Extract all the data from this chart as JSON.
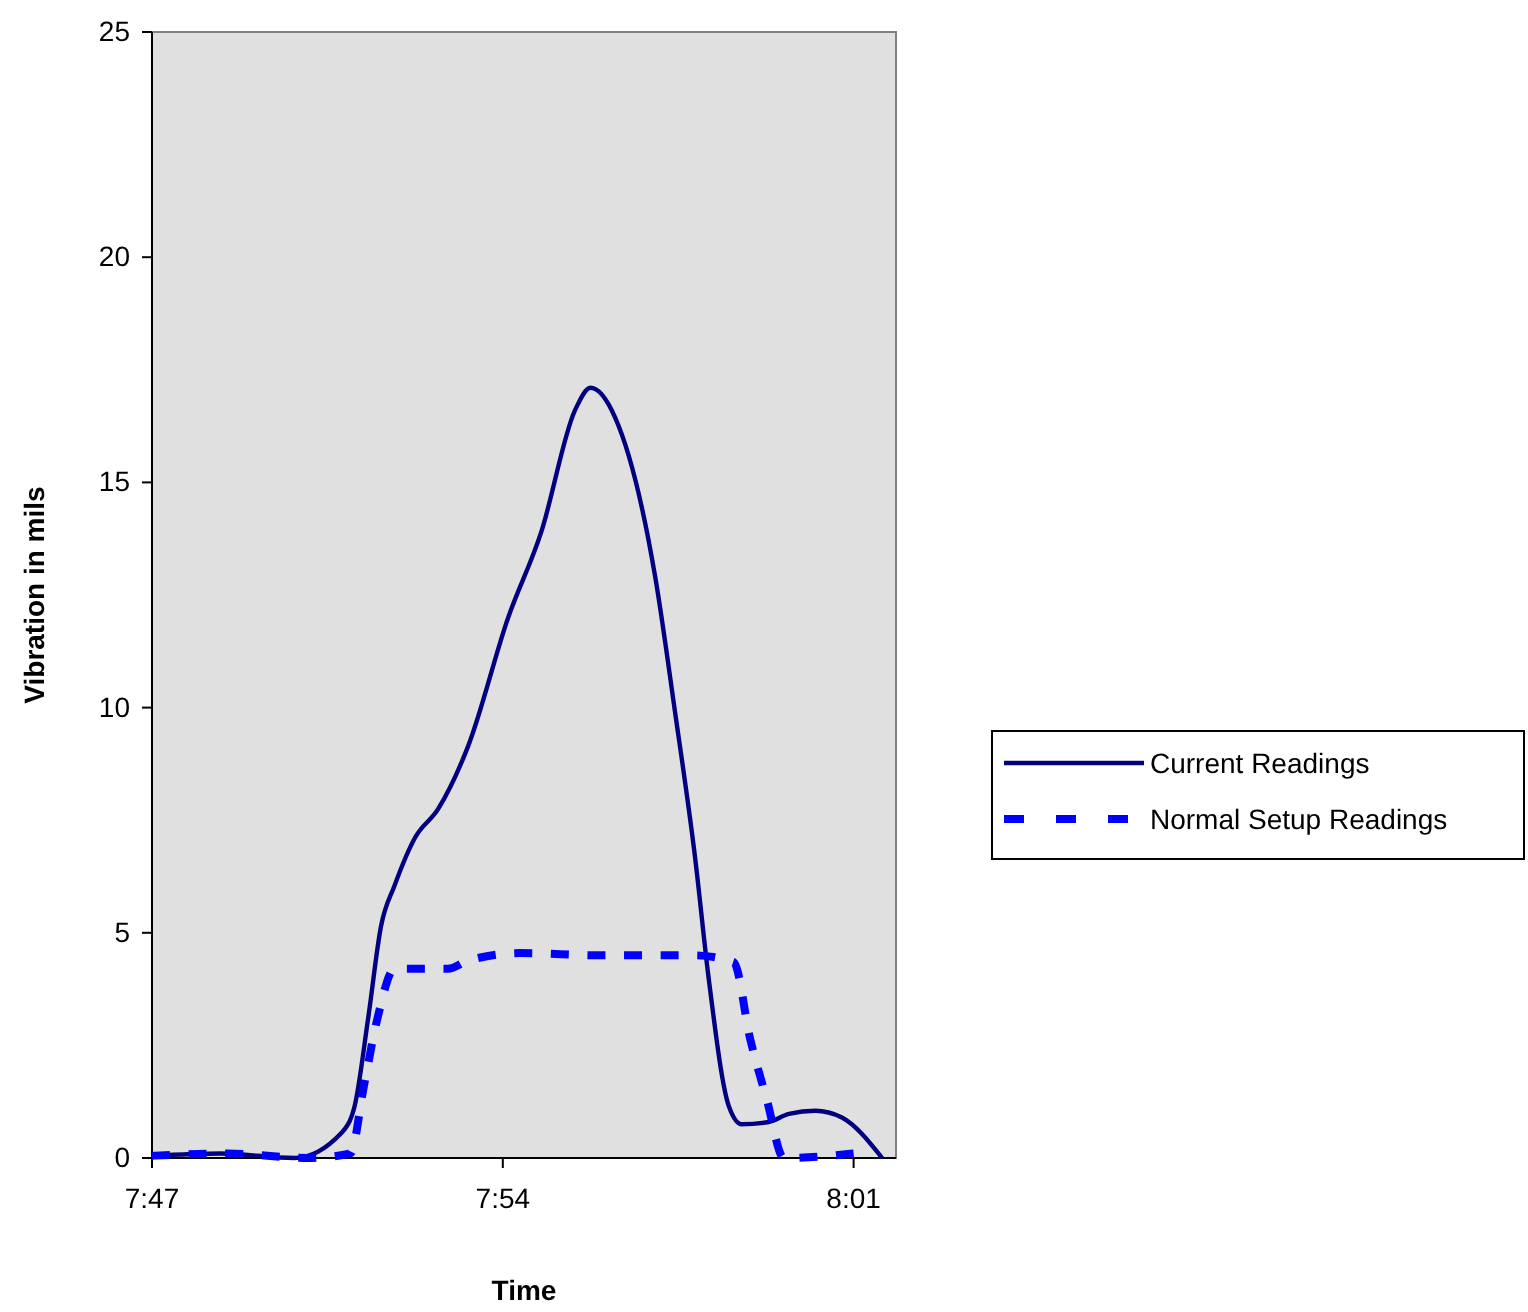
{
  "chart_data": {
    "type": "line",
    "xlabel": "Time",
    "ylabel": "Vibration in mils",
    "xlim": [
      7.7833,
      8.0308
    ],
    "ylim": [
      0,
      25
    ],
    "xticks": [
      {
        "value": 7.7833,
        "label": "7:47"
      },
      {
        "value": 7.9,
        "label": "7:54"
      },
      {
        "value": 8.0167,
        "label": "8:01"
      }
    ],
    "yticks": [
      0,
      5,
      10,
      15,
      20,
      25
    ],
    "grid": false,
    "legend": "right",
    "marker": "none",
    "series": [
      {
        "name": "Current Readings",
        "color": "#000080",
        "line_style": "solid",
        "x": [
          7.7833,
          7.8062,
          7.8307,
          7.8462,
          7.8507,
          7.8552,
          7.8595,
          7.864,
          7.8707,
          7.8785,
          7.8885,
          7.9018,
          7.9128,
          7.924,
          7.9292,
          7.9373,
          7.9507,
          7.9573,
          7.964,
          7.9685,
          7.9752,
          7.9795,
          7.9885,
          7.9952,
          8.004,
          8.0128,
          8.0262
        ],
        "values": [
          0.05,
          0.1,
          0,
          0.55,
          1.15,
          3.1,
          5.15,
          6.05,
          7.1,
          7.75,
          9.15,
          12,
          13.9,
          16.6,
          17.1,
          16.45,
          12.9,
          9.9,
          6.65,
          3.98,
          1.15,
          0.75,
          0.8,
          0.98,
          1.05,
          0.9,
          0
        ]
      },
      {
        "name": "Normal Setup Readings",
        "color": "#0000ff",
        "line_style": "dashed",
        "x": [
          7.7833,
          7.8083,
          7.835,
          7.8493,
          7.8538,
          7.8583,
          7.864,
          7.8817,
          7.8883,
          7.9058,
          7.9325,
          7.9635,
          7.9768,
          7.9823,
          7.9878,
          7.9935,
          8.0167
        ],
        "values": [
          0.05,
          0.1,
          0,
          0.1,
          1.6,
          3.1,
          4.2,
          4.2,
          4.38,
          4.55,
          4.5,
          4.5,
          4.35,
          2.64,
          1.3,
          0,
          0.1
        ]
      }
    ]
  }
}
